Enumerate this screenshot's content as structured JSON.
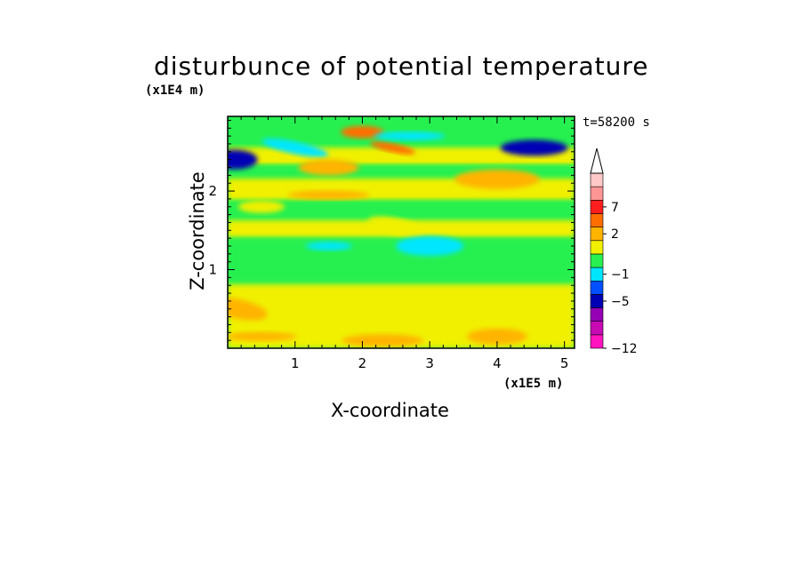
{
  "chart_data": {
    "type": "heatmap",
    "title": "disturbunce of potential temperature",
    "xlabel": "X-coordinate",
    "ylabel": "Z-coordinate",
    "x_unit": "(x1E5 m)",
    "y_unit": "(x1E4 m)",
    "annotation": "t=58200 s",
    "xlim": [
      0,
      5.15
    ],
    "ylim": [
      0,
      2.95
    ],
    "x_ticks": [
      1,
      2,
      3,
      4,
      5
    ],
    "y_ticks": [
      1,
      2
    ],
    "colorbar": {
      "labels": [
        {
          "value": 7,
          "text": "7"
        },
        {
          "value": 2,
          "text": "2"
        },
        {
          "value": -1,
          "text": "−1"
        },
        {
          "value": -5,
          "text": "−5"
        },
        {
          "value": -12,
          "text": "−12"
        }
      ],
      "colors": [
        "#ff14be",
        "#c80ab4",
        "#9600b4",
        "#0000b4",
        "#0050ff",
        "#00e6ff",
        "#28f050",
        "#f0f000",
        "#ffb400",
        "#ff6e00",
        "#ff1e1e",
        "#ff9696",
        "#ffc8c8"
      ],
      "extend": "max"
    },
    "features": [
      {
        "x": 2.45,
        "z": 2.55,
        "value": 5
      },
      {
        "x": 2.0,
        "z": 2.75,
        "value": 4
      },
      {
        "x": 4.55,
        "z": 2.55,
        "value": -5
      },
      {
        "x": 0.1,
        "z": 2.4,
        "value": -5
      },
      {
        "x": 2.7,
        "z": 2.7,
        "value": -2
      },
      {
        "x": 1.0,
        "z": 2.55,
        "value": -1
      },
      {
        "x": 1.5,
        "z": 2.3,
        "value": 2
      },
      {
        "x": 4.0,
        "z": 2.15,
        "value": 3
      },
      {
        "x": 1.5,
        "z": 1.95,
        "value": 2
      },
      {
        "x": 0.5,
        "z": 1.8,
        "value": 1
      },
      {
        "x": 2.5,
        "z": 1.55,
        "value": 1
      },
      {
        "x": 3.0,
        "z": 1.3,
        "value": -1
      },
      {
        "x": 1.5,
        "z": 1.3,
        "value": -1
      },
      {
        "x": 2.5,
        "z": 0.6,
        "value": 1
      },
      {
        "x": 3.0,
        "z": 0.4,
        "value": 1
      },
      {
        "x": 0.15,
        "z": 0.5,
        "value": 2
      },
      {
        "x": 0.5,
        "z": 0.15,
        "value": 2
      },
      {
        "x": 2.3,
        "z": 0.1,
        "value": 2
      },
      {
        "x": 4.0,
        "z": 0.15,
        "value": 2
      }
    ]
  }
}
